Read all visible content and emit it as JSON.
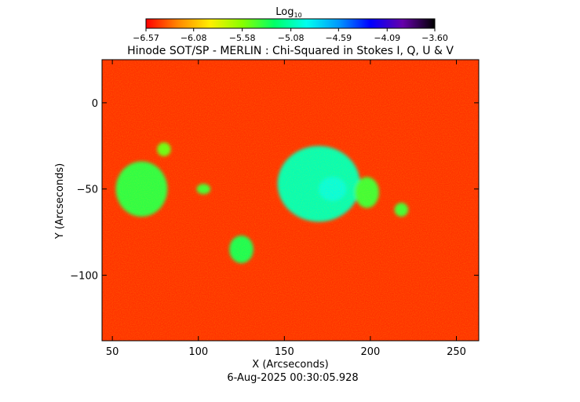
{
  "chart_data": {
    "type": "heatmap",
    "title": "Hinode SOT/SP - MERLIN : Chi-Squared in Stokes I, Q, U & V",
    "xlabel": "X (Arcseconds)",
    "ylabel": "Y (Arcseconds)",
    "xlim": [
      44,
      263
    ],
    "ylim": [
      -138,
      25
    ],
    "x_ticks": [
      50,
      100,
      150,
      200,
      250
    ],
    "y_ticks": [
      0,
      -50,
      -100
    ],
    "x_tick_labels": [
      "50",
      "100",
      "150",
      "200",
      "250"
    ],
    "y_tick_labels": [
      "0",
      "−50",
      "−100"
    ],
    "colorbar": {
      "label": "Log",
      "label_sub": "10",
      "min": -6.57,
      "max": -3.6,
      "ticks": [
        -6.57,
        -6.08,
        -5.58,
        -5.08,
        -4.59,
        -4.09,
        -3.6
      ],
      "tick_labels": [
        "−6.57",
        "−6.08",
        "−5.58",
        "−5.08",
        "−4.59",
        "−4.09",
        "−3.60"
      ],
      "colormap": [
        "#ff0000",
        "#ff8800",
        "#ffee00",
        "#88ff00",
        "#00ff66",
        "#00ffee",
        "#0099ff",
        "#0000ff",
        "#6600aa",
        "#000000"
      ]
    },
    "background_value": -6.45,
    "regions": [
      {
        "x": 67,
        "y": -50,
        "rx": 15,
        "ry": 16,
        "value": -5.35
      },
      {
        "x": 170,
        "y": -47,
        "rx": 24,
        "ry": 22,
        "value": -5.05
      },
      {
        "x": 178,
        "y": -50,
        "rx": 8,
        "ry": 7,
        "value": -4.95
      },
      {
        "x": 125,
        "y": -85,
        "rx": 7,
        "ry": 8,
        "value": -5.3
      },
      {
        "x": 198,
        "y": -52,
        "rx": 7,
        "ry": 9,
        "value": -5.4
      },
      {
        "x": 218,
        "y": -62,
        "rx": 4,
        "ry": 4,
        "value": -5.4
      },
      {
        "x": 103,
        "y": -50,
        "rx": 4,
        "ry": 3,
        "value": -5.4
      },
      {
        "x": 80,
        "y": -27,
        "rx": 4,
        "ry": 4,
        "value": -5.5
      }
    ],
    "footer_date": "6-Aug-2025 00:30:05.928"
  }
}
